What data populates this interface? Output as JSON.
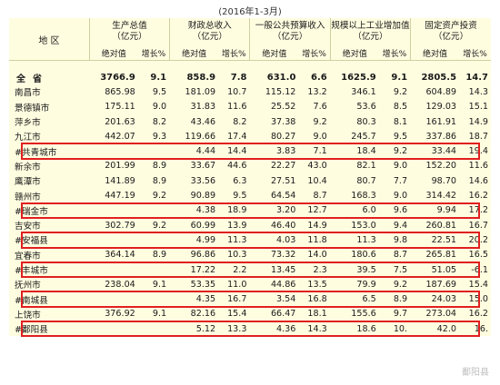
{
  "caption": "(2016年1-3月)",
  "headers": {
    "region": "地 区",
    "groups": [
      "生产总值\n（亿元）",
      "财政总收入\n（亿元）",
      "一般公共预算收入\n（亿元）",
      "规模以上工业增加值\n（亿元）",
      "固定资产投资\n（亿元）"
    ],
    "sub_value": "绝对值",
    "sub_growth": "增长%"
  },
  "total": {
    "name": "全省",
    "cells": [
      "3766.9",
      "9.1",
      "858.9",
      "7.8",
      "631.0",
      "6.6",
      "1625.9",
      "9.1",
      "2805.5",
      "14.7"
    ]
  },
  "rows": [
    {
      "name": "南昌市",
      "cells": [
        "865.98",
        "9.5",
        "181.09",
        "10.7",
        "115.12",
        "13.2",
        "346.1",
        "9.2",
        "604.89",
        "14.3"
      ]
    },
    {
      "name": "景德镇市",
      "cells": [
        "175.11",
        "9.0",
        "31.83",
        "11.6",
        "25.52",
        "7.6",
        "53.6",
        "8.5",
        "129.03",
        "15.1"
      ]
    },
    {
      "name": "萍乡市",
      "cells": [
        "201.63",
        "8.2",
        "43.46",
        "8.2",
        "37.38",
        "9.2",
        "80.3",
        "8.1",
        "161.91",
        "14.9"
      ]
    },
    {
      "name": "九江市",
      "cells": [
        "442.07",
        "9.3",
        "119.66",
        "17.4",
        "80.27",
        "9.0",
        "245.7",
        "9.5",
        "337.86",
        "18.7"
      ]
    },
    {
      "name": "#共青城市",
      "cells": [
        "",
        "",
        "4.44",
        "14.4",
        "3.83",
        "7.1",
        "18.4",
        "9.2",
        "33.44",
        "19.4"
      ],
      "highlight": true
    },
    {
      "name": "新余市",
      "cells": [
        "201.99",
        "8.9",
        "33.67",
        "44.6",
        "22.27",
        "43.0",
        "82.1",
        "9.0",
        "152.20",
        "11.6"
      ]
    },
    {
      "name": "鹰潭市",
      "cells": [
        "141.89",
        "8.9",
        "33.56",
        "6.3",
        "27.51",
        "10.4",
        "80.7",
        "7.7",
        "98.70",
        "14.6"
      ]
    },
    {
      "name": "赣州市",
      "cells": [
        "447.19",
        "9.2",
        "90.89",
        "9.5",
        "64.54",
        "8.7",
        "168.3",
        "9.0",
        "314.42",
        "16.2"
      ]
    },
    {
      "name": "#瑞金市",
      "cells": [
        "",
        "",
        "4.38",
        "18.9",
        "3.20",
        "12.7",
        "6.0",
        "9.6",
        "9.94",
        "17.2"
      ],
      "highlight": true
    },
    {
      "name": "吉安市",
      "cells": [
        "302.79",
        "9.2",
        "60.99",
        "13.9",
        "46.40",
        "14.9",
        "153.0",
        "9.4",
        "260.81",
        "16.7"
      ]
    },
    {
      "name": "#安福县",
      "cells": [
        "",
        "",
        "4.99",
        "11.3",
        "4.03",
        "11.8",
        "11.3",
        "9.8",
        "22.51",
        "20.2"
      ],
      "highlight": true
    },
    {
      "name": "宜春市",
      "cells": [
        "364.14",
        "8.9",
        "96.86",
        "10.3",
        "73.32",
        "14.0",
        "180.6",
        "8.7",
        "265.81",
        "16.5"
      ]
    },
    {
      "name": "#丰城市",
      "cells": [
        "",
        "",
        "17.22",
        "2.2",
        "13.45",
        "2.3",
        "39.5",
        "7.5",
        "51.05",
        "-6.1"
      ],
      "highlight": true
    },
    {
      "name": "抚州市",
      "cells": [
        "238.04",
        "9.1",
        "53.35",
        "11.0",
        "44.86",
        "13.5",
        "79.9",
        "9.2",
        "187.69",
        "15.4"
      ]
    },
    {
      "name": "#南城县",
      "cells": [
        "",
        "",
        "4.35",
        "16.7",
        "3.54",
        "16.8",
        "6.5",
        "8.9",
        "24.03",
        "15.0"
      ],
      "highlight": true
    },
    {
      "name": "上饶市",
      "cells": [
        "376.92",
        "9.1",
        "82.16",
        "15.4",
        "66.47",
        "18.1",
        "155.6",
        "9.7",
        "273.04",
        "16.2"
      ]
    },
    {
      "name": "#鄱阳县",
      "cells": [
        "",
        "",
        "5.12",
        "13.3",
        "4.36",
        "14.3",
        "18.6",
        "10.",
        "42.0",
        "16."
      ],
      "highlight": true
    }
  ],
  "watermark": "鄱阳县"
}
